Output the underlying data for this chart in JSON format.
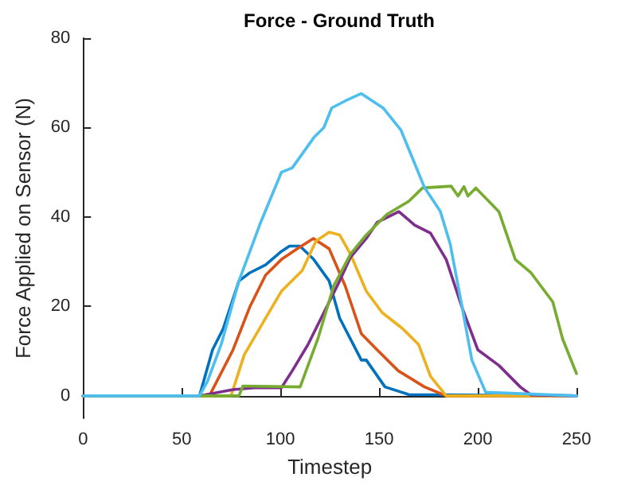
{
  "chart_data": {
    "type": "line",
    "title": "Force - Ground Truth",
    "xlabel": "Timestep",
    "ylabel": "Force Applied on Sensor (N)",
    "xlim": [
      0,
      250
    ],
    "xticks": [
      0,
      50,
      100,
      150,
      200,
      250
    ],
    "ylim": [
      -5,
      80
    ],
    "yticks": [
      0,
      20,
      40,
      60,
      80
    ],
    "marker": "none",
    "line_style": "solid",
    "series": [
      {
        "color": "#0072bd",
        "x": [
          0,
          59,
          65.6,
          71,
          79,
          84.4,
          92.5,
          100.5,
          104.6,
          109.9,
          116.7,
          124.7,
          130,
          141,
          143.5,
          153,
          165,
          250
        ],
        "values": [
          0,
          0,
          10.3,
          15,
          25.7,
          27.5,
          29.3,
          32.3,
          33.5,
          33.5,
          30.6,
          25.7,
          17.4,
          8,
          8,
          2,
          0.3,
          0
        ]
      },
      {
        "color": "#d95319",
        "x": [
          0,
          64,
          76,
          84.4,
          92.5,
          100.5,
          108.6,
          116.7,
          124.7,
          132.8,
          141,
          149,
          159.7,
          173,
          184,
          250
        ],
        "values": [
          0,
          0,
          10.3,
          19.8,
          27,
          30.5,
          32.9,
          35.2,
          32.9,
          24.6,
          13.9,
          10.3,
          5.6,
          2,
          0,
          0
        ]
      },
      {
        "color": "#edb120",
        "x": [
          0,
          75,
          81.7,
          92.5,
          100.5,
          111,
          118,
          124.7,
          130,
          135.5,
          143.5,
          151.6,
          162,
          170,
          176,
          184,
          250
        ],
        "values": [
          0,
          0,
          9.2,
          17.4,
          23.4,
          28,
          34.6,
          36.6,
          36,
          31.7,
          23.4,
          18.6,
          15,
          11.5,
          4.4,
          0,
          0
        ]
      },
      {
        "color": "#7e2f8e",
        "x": [
          0,
          59,
          76,
          87,
          100.5,
          106,
          114,
          122,
          130,
          135.5,
          143.5,
          149,
          160,
          168,
          176,
          184,
          192,
          200,
          210.7,
          221.5,
          227,
          250
        ],
        "values": [
          0,
          0,
          1.4,
          1.8,
          1.8,
          5.6,
          11.5,
          18.6,
          25.7,
          31,
          35.2,
          38.8,
          41.2,
          38.2,
          36.4,
          30.5,
          19.8,
          10.3,
          6.8,
          2,
          0.2,
          0
        ]
      },
      {
        "color": "#77ac30",
        "x": [
          0,
          79,
          81,
          110,
          119,
          127,
          135.5,
          143.5,
          154,
          165,
          172,
          186.5,
          190,
          193,
          195,
          199,
          210.7,
          219,
          227,
          238,
          243,
          250
        ],
        "values": [
          0,
          0,
          2.2,
          2,
          12.8,
          24.6,
          31.7,
          36,
          40.6,
          43.5,
          46.5,
          46.9,
          44.7,
          46.8,
          44.7,
          46.5,
          41.2,
          30.5,
          27.5,
          21,
          12.7,
          5
        ]
      },
      {
        "color": "#4dbeee",
        "x": [
          0,
          59,
          63,
          70,
          79,
          90,
          100.5,
          106,
          117,
          122,
          126,
          133,
          141,
          152,
          161,
          168,
          173,
          181,
          186,
          192,
          197,
          204,
          250
        ],
        "values": [
          0,
          0,
          3.2,
          11.5,
          25.7,
          38.8,
          50,
          51,
          57.8,
          60,
          64.4,
          66,
          67.6,
          64.4,
          59.5,
          52,
          46.6,
          41.3,
          34,
          20,
          8,
          0.8,
          0
        ]
      }
    ]
  }
}
